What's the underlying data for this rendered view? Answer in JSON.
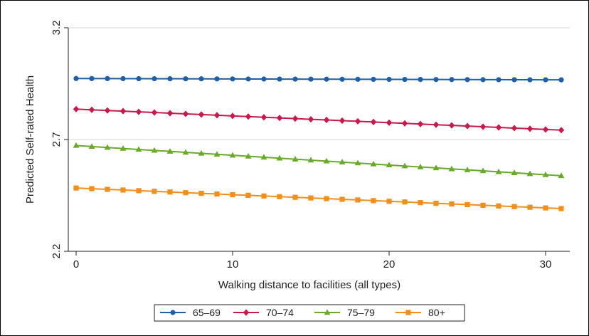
{
  "chart_data": {
    "type": "line",
    "xlabel": "Walking distance to facilities (all types)",
    "ylabel": "Predicted Self-rated Health",
    "xlim": [
      0,
      31
    ],
    "ylim": [
      2.2,
      3.2
    ],
    "xticks": [
      0,
      10,
      20,
      30
    ],
    "yticks": [
      {
        "value": 2.2,
        "label": "2.2"
      },
      {
        "value": 2.7,
        "label": "2.7"
      },
      {
        "value": 3.2,
        "label": "3.2"
      }
    ],
    "grid": true,
    "legend_position": "bottom",
    "x": [
      0,
      1,
      2,
      3,
      4,
      5,
      6,
      7,
      8,
      9,
      10,
      11,
      12,
      13,
      14,
      15,
      16,
      17,
      18,
      19,
      20,
      21,
      22,
      23,
      24,
      25,
      26,
      27,
      28,
      29,
      30,
      31
    ],
    "series": [
      {
        "name": "65–69",
        "color": "#1f5fa8",
        "marker": "circle",
        "start": 2.973,
        "end": 2.967
      },
      {
        "name": "70–74",
        "color": "#c8194b",
        "marker": "diamond",
        "start": 2.836,
        "end": 2.742
      },
      {
        "name": "75–79",
        "color": "#6aaa2a",
        "marker": "triangle",
        "start": 2.673,
        "end": 2.538
      },
      {
        "name": "80+",
        "color": "#f28e1c",
        "marker": "square",
        "start": 2.483,
        "end": 2.391
      }
    ]
  }
}
